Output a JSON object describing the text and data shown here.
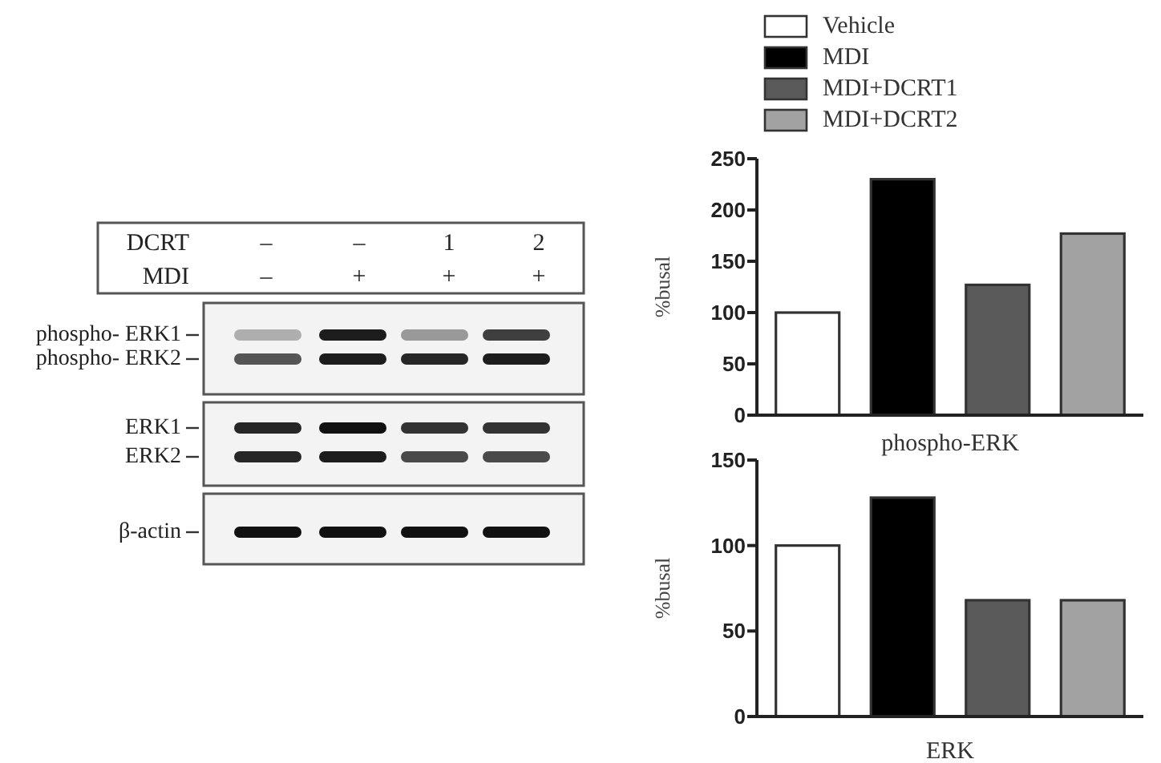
{
  "chart_data": [
    {
      "type": "other",
      "annotations": [
        "DCRT",
        "MDI",
        "–",
        "–",
        "1",
        "2",
        "–",
        "+",
        "+",
        "+",
        "phospho- ERK1",
        "phospho- ERK2",
        "ERK1",
        "ERK2",
        "β-actin"
      ]
    },
    {
      "type": "bar",
      "stacked": true,
      "categories": [
        null,
        null,
        null,
        null
      ],
      "series": [
        {
          "name": "Vehicle",
          "color": "#ffffff",
          "values": [
            100,
            null,
            null,
            null
          ]
        },
        {
          "name": "MDI",
          "color": "#000000",
          "values": [
            null,
            230,
            null,
            null
          ]
        },
        {
          "name": "MDI+DCRT1",
          "color": "#5a5a5a",
          "values": [
            null,
            null,
            127,
            null
          ]
        },
        {
          "name": "MDI+DCRT2",
          "color": "#a2a2a2",
          "values": [
            null,
            null,
            null,
            177
          ]
        }
      ],
      "xlabel": "phospho-ERK",
      "ylabel": "%busal",
      "ylim": [
        0,
        250
      ],
      "yticks": [
        0,
        50,
        100,
        150,
        200,
        250
      ],
      "legend": "top"
    },
    {
      "type": "bar",
      "stacked": true,
      "categories": [
        null,
        null,
        null,
        null
      ],
      "series": [
        {
          "color": "#ffffff",
          "values": [
            100,
            null,
            null,
            null
          ]
        },
        {
          "color": "#000000",
          "values": [
            null,
            128,
            null,
            null
          ]
        },
        {
          "color": "#5a5a5a",
          "values": [
            null,
            null,
            68,
            null
          ]
        },
        {
          "color": "#a2a2a2",
          "values": [
            null,
            null,
            null,
            68
          ]
        }
      ],
      "xlabel": "ERK",
      "ylabel": "%busal",
      "ylim": [
        0,
        150
      ],
      "yticks": [
        0,
        50,
        100,
        150
      ]
    }
  ]
}
